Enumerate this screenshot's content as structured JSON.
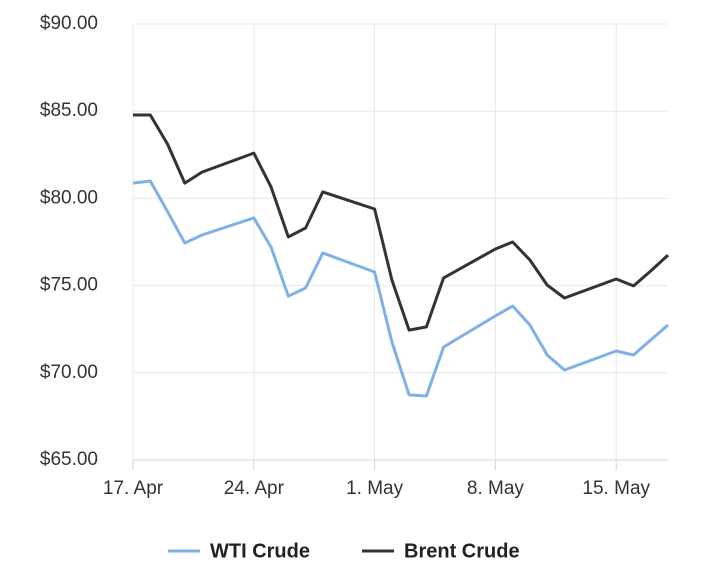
{
  "chart_data": {
    "type": "line",
    "x": [
      "04-17",
      "04-18",
      "04-19",
      "04-20",
      "04-21",
      "04-24",
      "04-25",
      "04-26",
      "04-27",
      "04-28",
      "05-01",
      "05-02",
      "05-03",
      "05-04",
      "05-05",
      "05-08",
      "05-09",
      "05-10",
      "05-11",
      "05-12",
      "05-15",
      "05-16",
      "05-17",
      "05-18"
    ],
    "series": [
      {
        "name": "WTI Crude",
        "color": "#7fb0e6",
        "values": [
          80.88,
          81.0,
          79.25,
          77.44,
          77.9,
          78.88,
          77.2,
          74.4,
          74.86,
          76.87,
          75.78,
          71.77,
          68.73,
          68.67,
          71.48,
          73.26,
          73.83,
          72.74,
          71.02,
          70.16,
          71.25,
          71.02,
          71.88,
          72.74
        ]
      },
      {
        "name": "Brent Crude",
        "color": "#333333",
        "values": [
          84.78,
          84.78,
          83.12,
          80.88,
          81.51,
          82.6,
          80.65,
          77.79,
          78.3,
          80.37,
          79.39,
          75.32,
          72.45,
          72.63,
          75.44,
          77.1,
          77.5,
          76.47,
          75.03,
          74.29,
          75.38,
          74.98,
          75.84,
          76.75
        ]
      }
    ],
    "xlim": [
      "04-17",
      "05-18"
    ],
    "xticks": [
      {
        "value": "04-17",
        "label": "17. Apr"
      },
      {
        "value": "04-24",
        "label": "24. Apr"
      },
      {
        "value": "05-01",
        "label": "1. May"
      },
      {
        "value": "05-08",
        "label": "8. May"
      },
      {
        "value": "05-15",
        "label": "15. May"
      }
    ],
    "ylim": [
      65,
      90
    ],
    "yticks": [
      {
        "value": 65,
        "label": "$65.00"
      },
      {
        "value": 70,
        "label": "$70.00"
      },
      {
        "value": 75,
        "label": "$75.00"
      },
      {
        "value": 80,
        "label": "$80.00"
      },
      {
        "value": 85,
        "label": "$85.00"
      },
      {
        "value": 90,
        "label": "$90.00"
      }
    ],
    "grid": true
  }
}
